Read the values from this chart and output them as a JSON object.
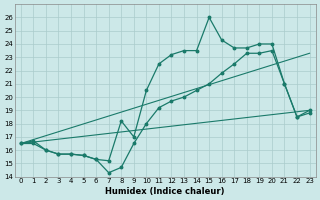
{
  "xlabel": "Humidex (Indice chaleur)",
  "background_color": "#cce8e8",
  "grid_color": "#aacccc",
  "line_color": "#1a7a6a",
  "xlim": [
    -0.5,
    23.5
  ],
  "ylim": [
    14,
    27
  ],
  "xticks": [
    0,
    1,
    2,
    3,
    4,
    5,
    6,
    7,
    8,
    9,
    10,
    11,
    12,
    13,
    14,
    15,
    16,
    17,
    18,
    19,
    20,
    21,
    22,
    23
  ],
  "yticks": [
    14,
    15,
    16,
    17,
    18,
    19,
    20,
    21,
    22,
    23,
    24,
    25,
    26
  ],
  "series_dip_x": [
    0,
    1,
    2,
    3,
    4,
    5,
    6,
    7,
    8,
    9,
    10,
    11,
    12,
    13,
    14,
    15,
    16,
    17,
    18,
    19,
    20,
    21,
    22,
    23
  ],
  "series_dip_y": [
    16.5,
    16.5,
    16.0,
    15.7,
    15.7,
    15.6,
    15.3,
    14.3,
    14.7,
    16.5,
    18.0,
    19.2,
    19.7,
    20.0,
    20.5,
    21.0,
    21.8,
    22.5,
    23.3,
    23.3,
    23.5,
    21.0,
    18.5,
    18.8
  ],
  "series_peak_x": [
    0,
    1,
    2,
    3,
    4,
    5,
    6,
    7,
    8,
    9,
    10,
    11,
    12,
    13,
    14,
    15,
    16,
    17,
    18,
    19,
    20,
    21,
    22,
    23
  ],
  "series_peak_y": [
    16.5,
    16.7,
    16.0,
    15.7,
    15.7,
    15.6,
    15.3,
    15.2,
    18.2,
    17.0,
    20.5,
    22.5,
    23.2,
    23.5,
    23.5,
    26.0,
    24.3,
    23.7,
    23.7,
    24.0,
    24.0,
    21.0,
    18.5,
    19.0
  ],
  "line1_x": [
    0,
    23
  ],
  "line1_y": [
    16.5,
    19.0
  ],
  "line2_x": [
    0,
    23
  ],
  "line2_y": [
    16.5,
    23.3
  ]
}
